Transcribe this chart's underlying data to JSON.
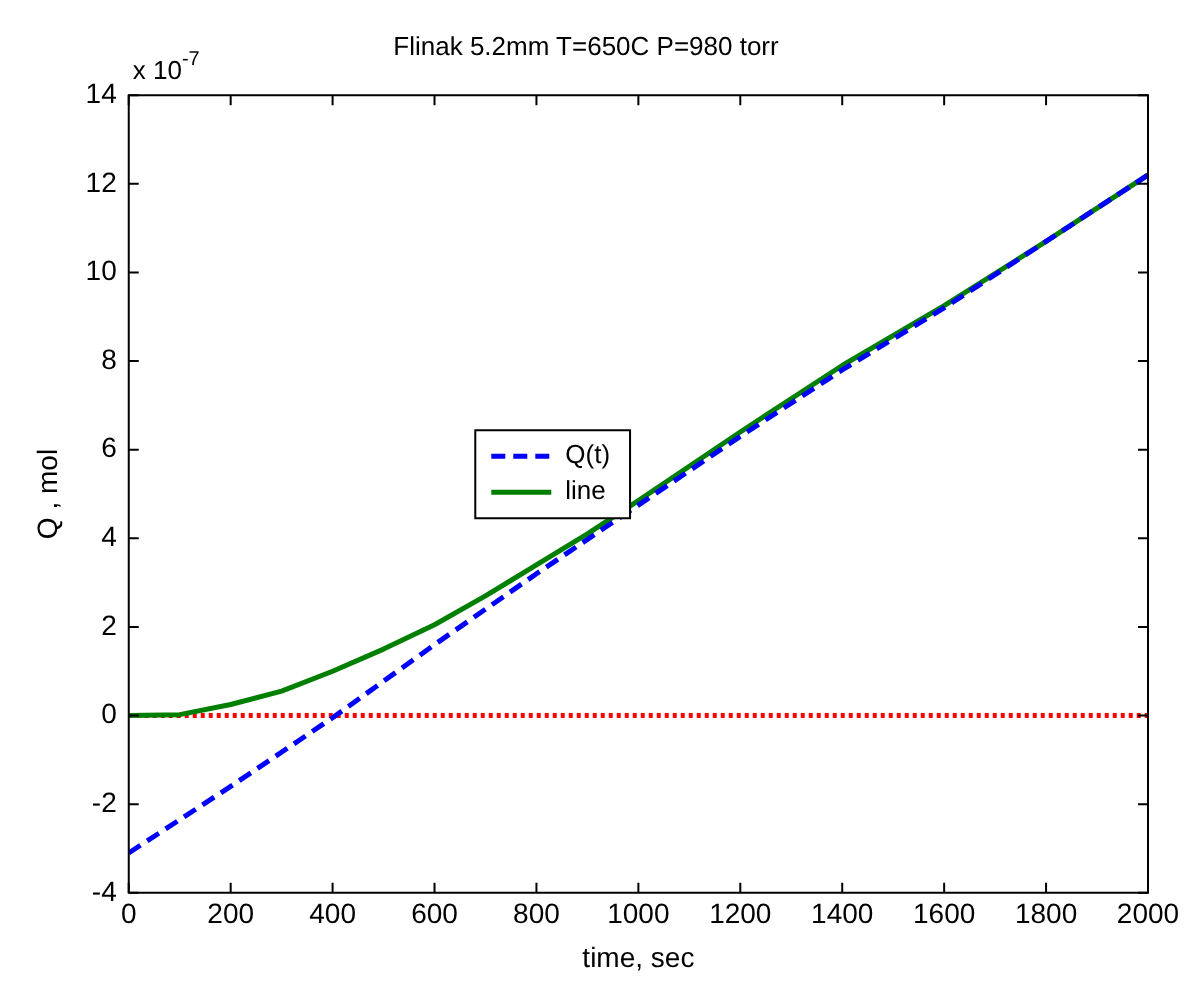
{
  "chart_data": {
    "type": "line",
    "title": "Flinak 5.2mm T=650C P=980 torr",
    "xlabel": "time, sec",
    "ylabel": "Q , mol",
    "annotations": [
      "x 10$^{-7}$"
    ],
    "xlim": [
      0,
      2000
    ],
    "xticks": [
      0,
      200,
      400,
      600,
      800,
      1000,
      1200,
      1400,
      1600,
      1800,
      2000
    ],
    "ylim": [
      -4,
      14
    ],
    "yticks": [
      -4,
      -2,
      0,
      2,
      4,
      6,
      8,
      10,
      12,
      14
    ],
    "grid": false,
    "legend": "left",
    "marker": "none",
    "series": [
      {
        "name": "Q(t)",
        "color": "#0000ff",
        "line_style": "dashed",
        "x": [
          0,
          200,
          400,
          600,
          800,
          1000,
          1200,
          1400,
          1600,
          1800,
          2000
        ],
        "values": [
          -3.1,
          -1.6,
          -0.05,
          1.6,
          3.2,
          4.75,
          6.3,
          7.8,
          9.2,
          10.7,
          12.2
        ]
      },
      {
        "name": "line",
        "color": "#007f00",
        "line_style": "solid",
        "x": [
          0,
          100,
          200,
          300,
          400,
          500,
          600,
          700,
          800,
          900,
          1000,
          1200,
          1400,
          1600,
          1800,
          2000
        ],
        "values": [
          0,
          0.02,
          0.25,
          0.55,
          1.0,
          1.5,
          2.05,
          2.7,
          3.4,
          4.1,
          4.85,
          6.4,
          7.9,
          9.25,
          10.7,
          12.2
        ]
      },
      {
        "color": "#ff0000",
        "line_style": "dotted",
        "x": [
          0,
          2000
        ],
        "values": [
          0,
          0
        ]
      }
    ]
  }
}
